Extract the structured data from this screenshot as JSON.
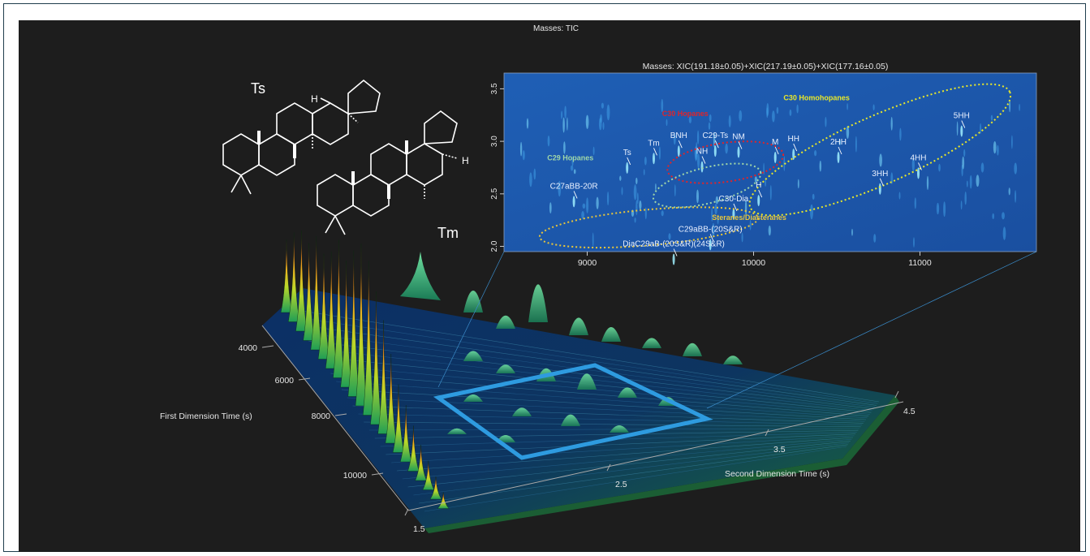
{
  "figure": {
    "main_title": "Masses:  TIC",
    "colors": {
      "background": "#1d1d1d",
      "highlight_box": "#2e9be0",
      "surface_low": "#0b2d5c",
      "surface_mid": "#1fa35a",
      "surface_peak": "#e0241b"
    }
  },
  "structures": [
    {
      "name": "Ts",
      "h_label": "H"
    },
    {
      "name": "Tm",
      "h_label": "H"
    }
  ],
  "chart_data": [
    {
      "type": "surface",
      "title": "Masses:  TIC",
      "xlabel": "Second Dimension Time (s)",
      "ylabel": "First Dimension Time (s)",
      "x_ticks": [
        "1.5",
        "2.5",
        "3.5",
        "4.5"
      ],
      "y_ticks": [
        "4000",
        "6000",
        "8000",
        "10000"
      ],
      "xlim": [
        1.5,
        4.5
      ],
      "ylim": [
        3000,
        11500
      ],
      "highlight_region": {
        "x": [
          2.2,
          3.9
        ],
        "y": [
          6600,
          11300
        ]
      }
    },
    {
      "type": "heatmap",
      "title": "Masses:  XIC(191.18±0.05)+XIC(217.19±0.05)+XIC(177.16±0.05)",
      "x_ticks": [
        "9000",
        "10000",
        "11000"
      ],
      "y_ticks": [
        "2.0",
        "2.5",
        "3.0",
        "3.5"
      ],
      "xlim": [
        8500,
        11700
      ],
      "ylim": [
        1.95,
        3.65
      ],
      "regions": [
        {
          "label": "C30 Hopanes",
          "color": "#e0242a"
        },
        {
          "label": "C30 Homohopanes",
          "color": "#e8e82a"
        },
        {
          "label": "C29 Hopanes",
          "color": "#9fd6a8"
        },
        {
          "label": "Steranes/Diasteranes",
          "color": "#e8c63a"
        }
      ],
      "peak_labels": [
        {
          "text": "Ts",
          "x": 9240,
          "y": 2.87
        },
        {
          "text": "Tm",
          "x": 9400,
          "y": 2.96
        },
        {
          "text": "BNH",
          "x": 9550,
          "y": 3.03
        },
        {
          "text": "C29-Ts",
          "x": 9770,
          "y": 3.03
        },
        {
          "text": "NM",
          "x": 9910,
          "y": 3.02
        },
        {
          "text": "NH",
          "x": 9690,
          "y": 2.88
        },
        {
          "text": "M",
          "x": 10130,
          "y": 2.97
        },
        {
          "text": "HH",
          "x": 10240,
          "y": 3.0
        },
        {
          "text": "2HH",
          "x": 10510,
          "y": 2.97
        },
        {
          "text": "4HH",
          "x": 10990,
          "y": 2.82
        },
        {
          "text": "5HH",
          "x": 11250,
          "y": 3.22
        },
        {
          "text": "3HH",
          "x": 10760,
          "y": 2.67
        },
        {
          "text": "H",
          "x": 10030,
          "y": 2.56
        },
        {
          "text": "C30-Dia",
          "x": 9880,
          "y": 2.43
        },
        {
          "text": "C27aBB-20R",
          "x": 8920,
          "y": 2.55
        },
        {
          "text": "C29aBB-(20S&R)",
          "x": 9740,
          "y": 2.14
        },
        {
          "text": "DiaC29aB-(20S&R)(24S&R)",
          "x": 9520,
          "y": 2.0
        }
      ]
    }
  ]
}
